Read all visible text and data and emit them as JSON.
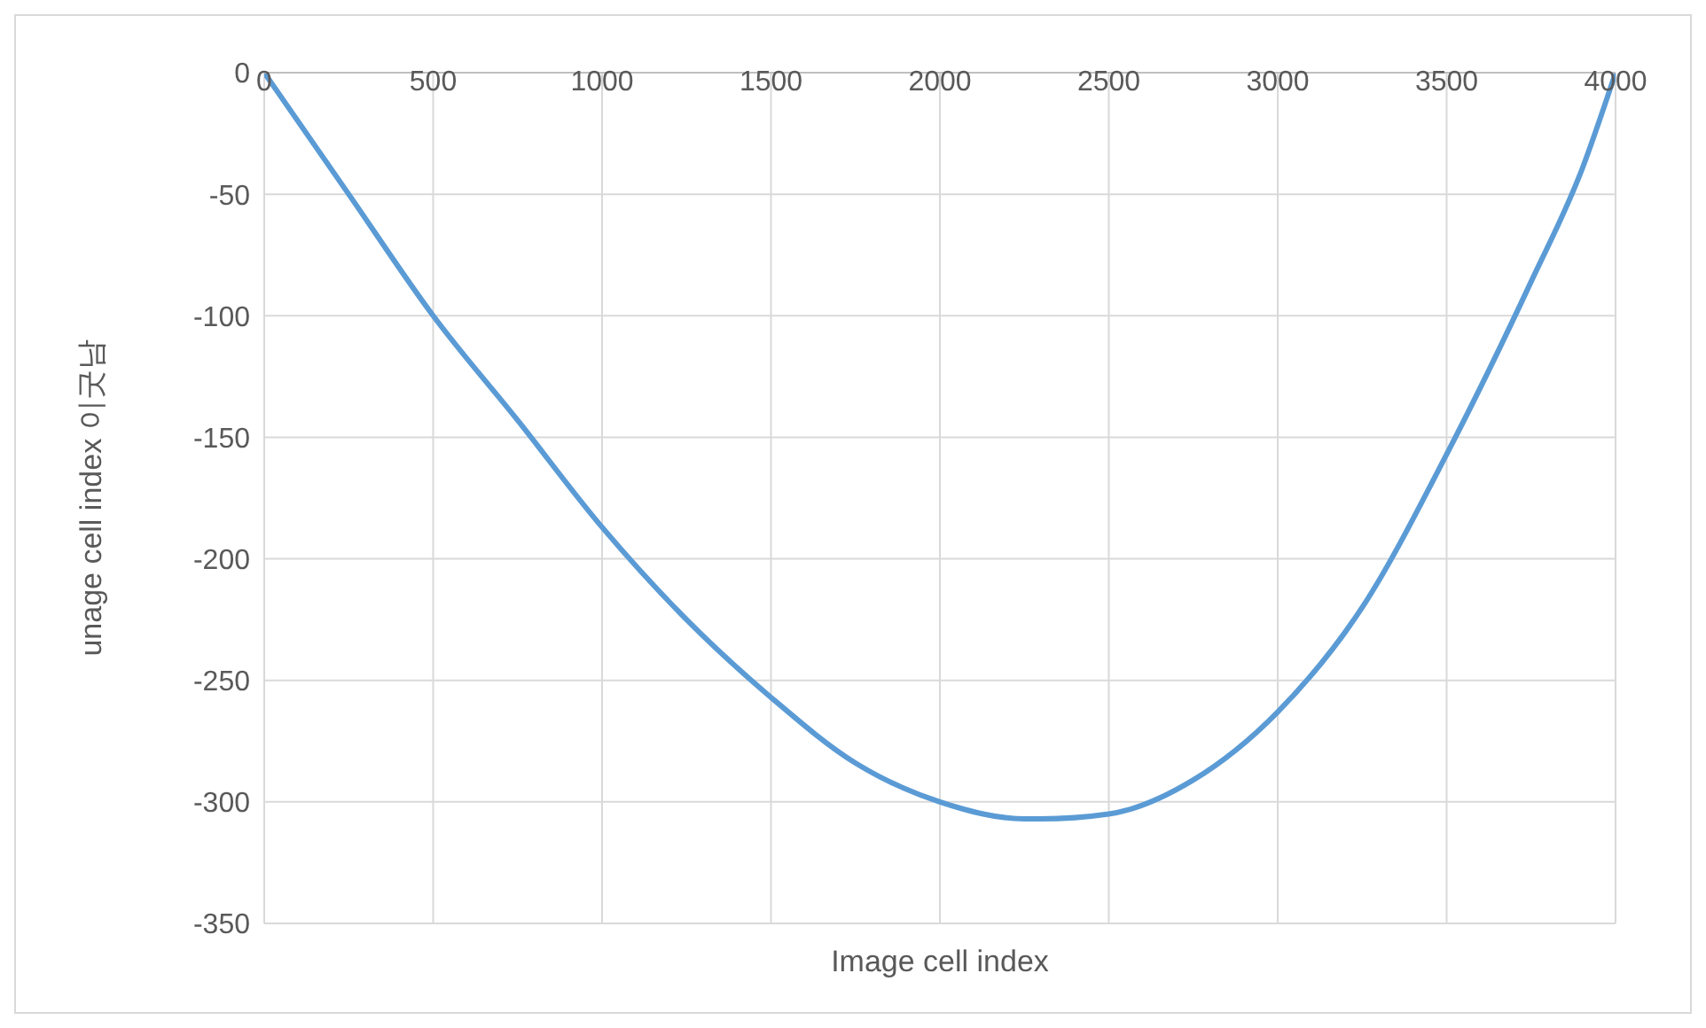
{
  "chart_data": {
    "type": "line",
    "xlabel": "Image cell index",
    "ylabel": "unage cell index 이굿남",
    "x": [
      0,
      250,
      500,
      750,
      1000,
      1250,
      1500,
      1750,
      2000,
      2250,
      2300,
      2500,
      2750,
      3000,
      3250,
      3500,
      3750,
      3900,
      4000
    ],
    "series": [
      {
        "color": "#5b9bd5",
        "values": [
          0,
          -50,
          -100,
          -143,
          -187,
          -225,
          -257,
          -284,
          -300,
          -307,
          -307,
          -305,
          -291,
          -263,
          -220,
          -157,
          -86,
          -40,
          0
        ]
      }
    ],
    "xlim": [
      0,
      4000
    ],
    "xticks": [
      0,
      500,
      1000,
      1500,
      2000,
      2500,
      3000,
      3500,
      4000
    ],
    "ylim": [
      -350,
      0
    ],
    "yticks": [
      -350,
      -300,
      -250,
      -200,
      -150,
      -100,
      -50,
      0
    ],
    "grid": true,
    "marker": "none",
    "line_style": "solid"
  }
}
